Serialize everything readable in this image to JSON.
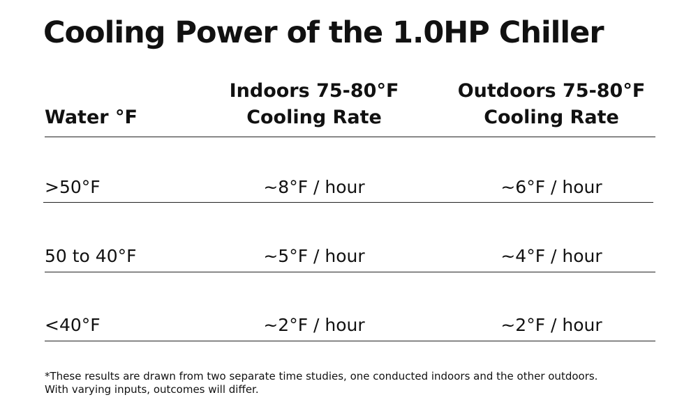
{
  "title": "Cooling Power of the 1.0HP Chiller",
  "table": {
    "headers": {
      "water": "Water °F",
      "indoor_line1": "Indoors 75-80°F",
      "indoor_line2": "Cooling Rate",
      "outdoor_line1": "Outdoors 75-80°F",
      "outdoor_line2": "Cooling Rate"
    },
    "rows": [
      {
        "water": ">50°F",
        "indoor": "~8°F / hour",
        "outdoor": "~6°F / hour"
      },
      {
        "water": "50 to 40°F",
        "indoor": "~5°F / hour",
        "outdoor": "~4°F / hour"
      },
      {
        "water": "<40°F",
        "indoor": "~2°F / hour",
        "outdoor": "~2°F / hour"
      }
    ]
  },
  "footnote": {
    "line1": "*These results are drawn from two separate time studies, one conducted indoors and the other outdoors.",
    "line2": "With varying inputs, outcomes will differ."
  }
}
